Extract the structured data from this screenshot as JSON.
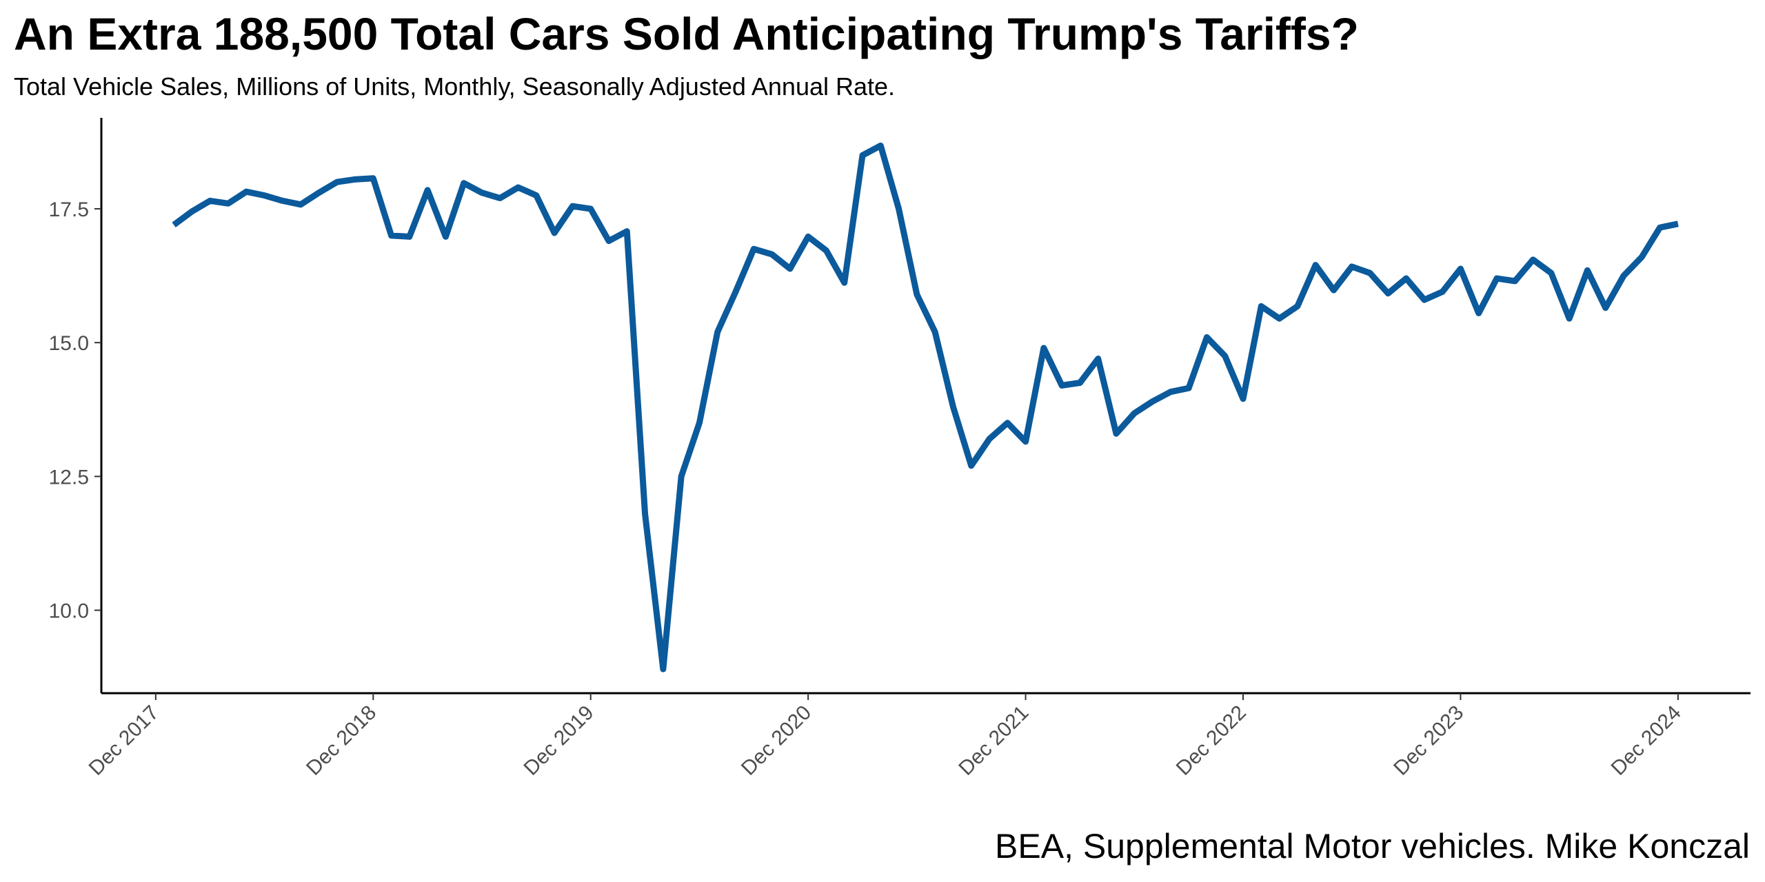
{
  "chart_data": {
    "type": "line",
    "title": "An Extra 188,500 Total Cars Sold Anticipating Trump's Tariffs?",
    "subtitle": "Total Vehicle Sales, Millions of Units, Monthly, Seasonally Adjusted Annual Rate.",
    "caption": "BEA, Supplemental Motor vehicles. Mike Konczal",
    "x": [
      "2018-01",
      "2018-02",
      "2018-03",
      "2018-04",
      "2018-05",
      "2018-06",
      "2018-07",
      "2018-08",
      "2018-09",
      "2018-10",
      "2018-11",
      "2018-12",
      "2019-01",
      "2019-02",
      "2019-03",
      "2019-04",
      "2019-05",
      "2019-06",
      "2019-07",
      "2019-08",
      "2019-09",
      "2019-10",
      "2019-11",
      "2019-12",
      "2020-01",
      "2020-02",
      "2020-03",
      "2020-04",
      "2020-05",
      "2020-06",
      "2020-07",
      "2020-08",
      "2020-09",
      "2020-10",
      "2020-11",
      "2020-12",
      "2021-01",
      "2021-02",
      "2021-03",
      "2021-04",
      "2021-05",
      "2021-06",
      "2021-07",
      "2021-08",
      "2021-09",
      "2021-10",
      "2021-11",
      "2021-12",
      "2022-01",
      "2022-02",
      "2022-03",
      "2022-04",
      "2022-05",
      "2022-06",
      "2022-07",
      "2022-08",
      "2022-09",
      "2022-10",
      "2022-11",
      "2022-12",
      "2023-01",
      "2023-02",
      "2023-03",
      "2023-04",
      "2023-05",
      "2023-06",
      "2023-07",
      "2023-08",
      "2023-09",
      "2023-10",
      "2023-11",
      "2023-12",
      "2024-01",
      "2024-02",
      "2024-03",
      "2024-04",
      "2024-05",
      "2024-06",
      "2024-07",
      "2024-08",
      "2024-09",
      "2024-10",
      "2024-11",
      "2024-12"
    ],
    "series": [
      {
        "color": "#0b5a9c",
        "values": [
          17.2,
          17.45,
          17.65,
          17.6,
          17.82,
          17.75,
          17.65,
          17.58,
          17.8,
          18.0,
          18.05,
          18.07,
          17.0,
          16.98,
          17.85,
          16.98,
          17.98,
          17.8,
          17.7,
          17.9,
          17.75,
          17.05,
          17.55,
          17.5,
          16.9,
          17.08,
          11.8,
          8.9,
          12.5,
          13.5,
          15.2,
          15.95,
          16.75,
          16.65,
          16.38,
          16.98,
          16.72,
          16.12,
          18.5,
          18.68,
          17.5,
          15.9,
          15.2,
          13.8,
          12.7,
          13.2,
          13.5,
          13.15,
          14.9,
          14.2,
          14.25,
          14.7,
          13.3,
          13.68,
          13.9,
          14.08,
          14.15,
          15.1,
          14.75,
          13.95,
          15.68,
          15.45,
          15.68,
          16.45,
          15.98,
          16.42,
          16.3,
          15.92,
          16.2,
          15.8,
          15.95,
          16.38,
          15.55,
          16.2,
          16.15,
          16.55,
          16.3,
          15.45,
          16.35,
          15.65,
          16.25,
          16.6,
          17.15,
          17.22
        ]
      }
    ],
    "xlim": [
      "2017-09",
      "2025-04"
    ],
    "xticks": [
      {
        "value": "2017-12",
        "label": "Dec 2017"
      },
      {
        "value": "2018-12",
        "label": "Dec 2018"
      },
      {
        "value": "2019-12",
        "label": "Dec 2019"
      },
      {
        "value": "2020-12",
        "label": "Dec 2020"
      },
      {
        "value": "2021-12",
        "label": "Dec 2021"
      },
      {
        "value": "2022-12",
        "label": "Dec 2022"
      },
      {
        "value": "2023-12",
        "label": "Dec 2023"
      },
      {
        "value": "2024-12",
        "label": "Dec 2024"
      }
    ],
    "ylim": [
      8.45,
      19.2
    ],
    "yticks": [
      {
        "value": 10,
        "label": "10.0"
      },
      12.5,
      {
        "value": 15,
        "label": "15.0"
      },
      17.5
    ],
    "grid": false
  }
}
